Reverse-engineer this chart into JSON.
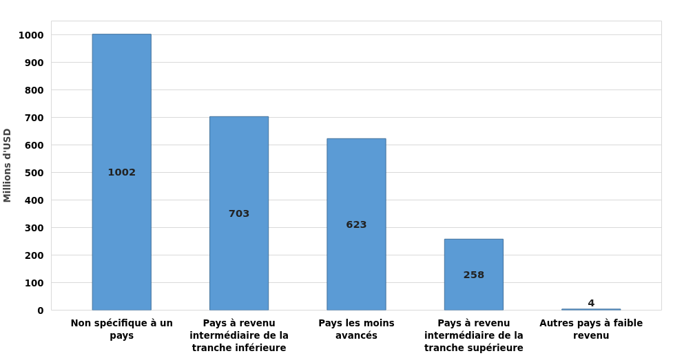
{
  "chart_data": {
    "type": "bar",
    "ylabel": "Millions d'USD",
    "categories": [
      "Non spécifique à un pays",
      "Pays à revenu intermédiaire de la tranche inférieure",
      "Pays les moins avancés",
      "Pays à revenu intermédiaire de la tranche supérieure",
      "Autres pays à faible revenu"
    ],
    "values": [
      1002,
      703,
      623,
      258,
      4
    ],
    "color": "#5b9bd5",
    "ylim": [
      0,
      1050
    ],
    "yticks": [
      0,
      100,
      200,
      300,
      400,
      500,
      600,
      700,
      800,
      900,
      1000
    ],
    "grid": "y",
    "data_labels": true
  }
}
